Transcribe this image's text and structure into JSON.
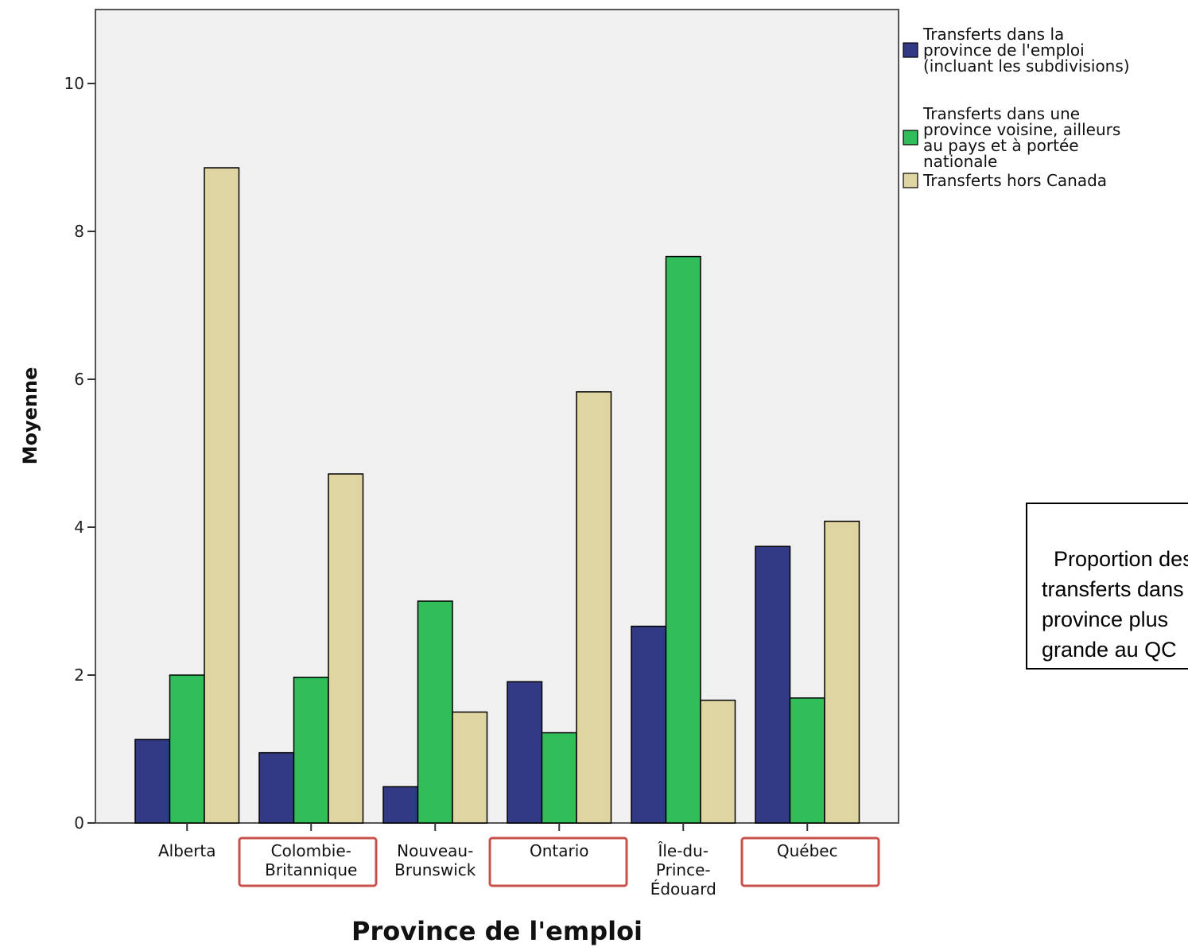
{
  "chart_data": {
    "type": "bar",
    "categories": [
      [
        "Alberta"
      ],
      [
        "Colombie-",
        "Britannique"
      ],
      [
        "Nouveau-",
        "Brunswick"
      ],
      [
        "Ontario"
      ],
      [
        "Île-du-",
        "Prince-",
        "Édouard"
      ],
      [
        "Québec"
      ]
    ],
    "highlighted_categories": [
      1,
      3,
      5
    ],
    "series": [
      {
        "name": [
          "Transferts dans la",
          "province de l'emploi",
          "(incluant les subdivisions)"
        ],
        "color": "#333a85",
        "values": [
          1.13,
          0.95,
          0.49,
          1.91,
          2.66,
          3.74
        ]
      },
      {
        "name": [
          "Transferts dans une",
          "province voisine, ailleurs",
          "au pays et à portée",
          "nationale"
        ],
        "color": "#31bd5a",
        "values": [
          2.0,
          1.97,
          3.0,
          1.22,
          7.66,
          1.69
        ]
      },
      {
        "name": [
          "Transferts hors Canada"
        ],
        "color": "#dfd5a3",
        "values": [
          8.86,
          4.72,
          1.5,
          5.83,
          1.66,
          4.08
        ]
      }
    ],
    "xlabel": "Province de l'emploi",
    "ylabel": "Moyenne",
    "ylim": [
      0,
      11
    ],
    "yticks": [
      0,
      2,
      4,
      6,
      8,
      10
    ],
    "grid": false,
    "legend_position": "top-right",
    "plot_background": "#f0f0f0",
    "highlight_color": "#c9514c"
  },
  "annotation": {
    "text": "Proportion des\ntransferts dans la\nprovince plus\ngrande au QC\nqu’en ON"
  }
}
